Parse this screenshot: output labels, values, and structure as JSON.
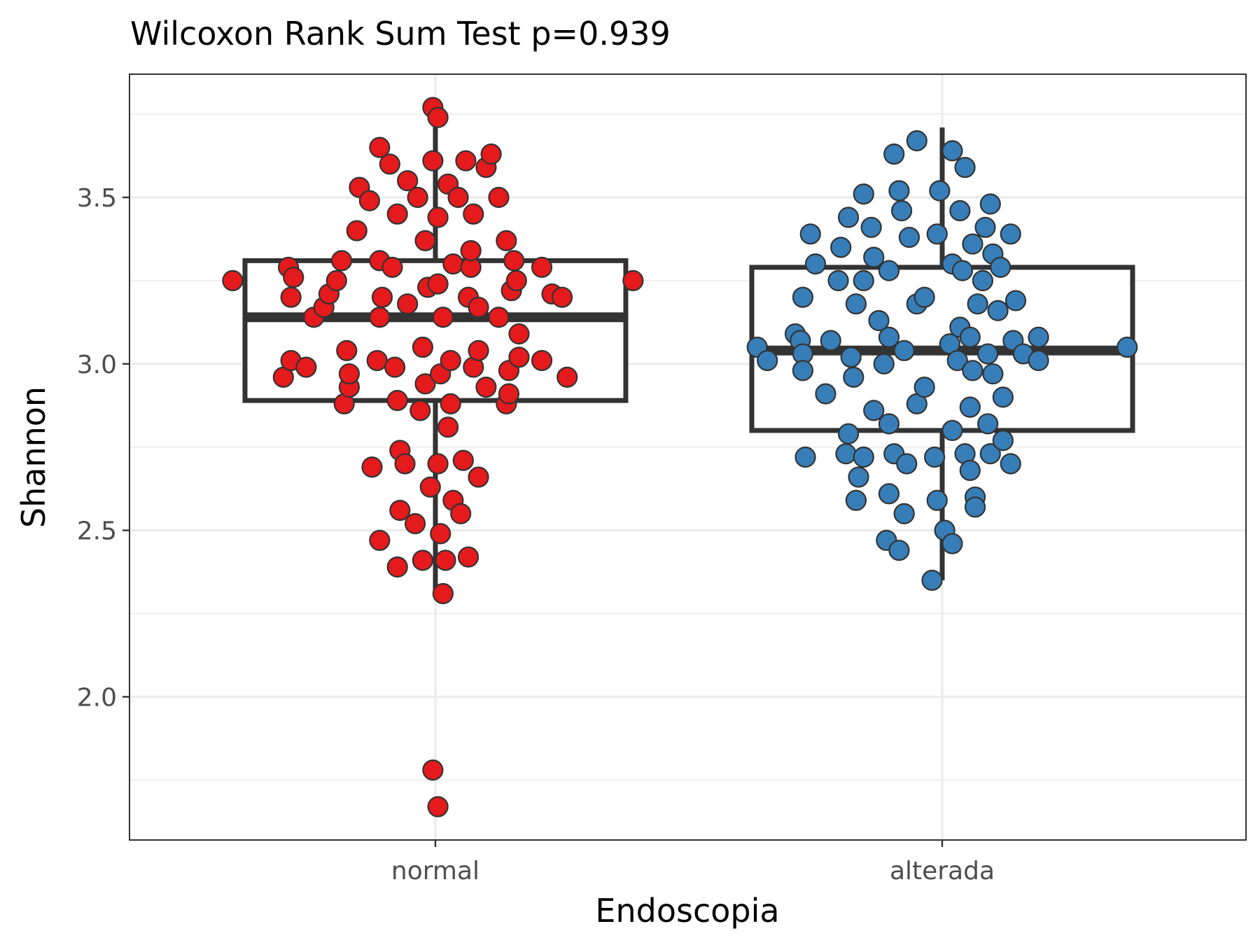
{
  "chart_data": {
    "type": "box",
    "title": "Wilcoxon Rank Sum Test p=0.939",
    "xlabel": "Endoscopia",
    "ylabel": "Shannon",
    "ylim": [
      1.57,
      3.87
    ],
    "yticks": [
      2.0,
      2.5,
      3.0,
      3.5
    ],
    "ytick_labels": [
      "2.0",
      "2.5",
      "3.0",
      "3.5"
    ],
    "grid": true,
    "categories": [
      "normal",
      "alterada"
    ],
    "colors": {
      "normal": "#e41a1c",
      "alterada": "#377eb8"
    },
    "boxes": [
      {
        "category": "normal",
        "whisker_low": 2.32,
        "q1": 2.89,
        "median": 3.14,
        "q3": 3.31,
        "whisker_high": 3.74
      },
      {
        "category": "alterada",
        "whisker_low": 2.35,
        "q1": 2.8,
        "median": 3.04,
        "q3": 3.29,
        "whisker_high": 3.71
      }
    ],
    "series": [
      {
        "category": "normal",
        "points": [
          [
            -0.8,
            3.25
          ],
          [
            0.78,
            3.25
          ],
          [
            -0.6,
            2.96
          ],
          [
            -0.58,
            3.29
          ],
          [
            -0.56,
            3.26
          ],
          [
            -0.57,
            3.2
          ],
          [
            -0.57,
            3.01
          ],
          [
            -0.51,
            2.99
          ],
          [
            -0.48,
            3.14
          ],
          [
            -0.44,
            3.17
          ],
          [
            -0.42,
            3.21
          ],
          [
            -0.39,
            3.25
          ],
          [
            -0.37,
            3.31
          ],
          [
            -0.36,
            2.88
          ],
          [
            -0.34,
            2.93
          ],
          [
            -0.34,
            2.97
          ],
          [
            -0.35,
            3.04
          ],
          [
            -0.31,
            3.4
          ],
          [
            -0.3,
            3.53
          ],
          [
            -0.26,
            3.49
          ],
          [
            -0.25,
            2.69
          ],
          [
            -0.23,
            3.01
          ],
          [
            -0.22,
            3.14
          ],
          [
            -0.22,
            3.31
          ],
          [
            -0.22,
            3.65
          ],
          [
            -0.22,
            2.47
          ],
          [
            -0.21,
            3.2
          ],
          [
            -0.18,
            3.6
          ],
          [
            -0.17,
            3.29
          ],
          [
            -0.16,
            2.99
          ],
          [
            -0.15,
            3.45
          ],
          [
            -0.15,
            2.89
          ],
          [
            -0.14,
            2.74
          ],
          [
            -0.14,
            2.56
          ],
          [
            -0.15,
            2.39
          ],
          [
            -0.12,
            2.7
          ],
          [
            -0.11,
            3.18
          ],
          [
            -0.11,
            3.55
          ],
          [
            -0.08,
            2.52
          ],
          [
            -0.07,
            3.5
          ],
          [
            -0.06,
            2.86
          ],
          [
            -0.05,
            3.05
          ],
          [
            -0.05,
            2.41
          ],
          [
            -0.04,
            2.94
          ],
          [
            -0.04,
            3.37
          ],
          [
            -0.03,
            3.23
          ],
          [
            -0.02,
            2.63
          ],
          [
            -0.01,
            3.77
          ],
          [
            -0.01,
            1.78
          ],
          [
            0.01,
            1.67
          ],
          [
            -0.01,
            3.61
          ],
          [
            0.01,
            3.74
          ],
          [
            0.01,
            2.7
          ],
          [
            0.01,
            3.24
          ],
          [
            0.02,
            2.97
          ],
          [
            0.01,
            3.44
          ],
          [
            0.02,
            2.49
          ],
          [
            0.03,
            2.31
          ],
          [
            0.03,
            3.14
          ],
          [
            0.04,
            2.41
          ],
          [
            0.05,
            2.81
          ],
          [
            0.05,
            3.54
          ],
          [
            0.06,
            2.88
          ],
          [
            0.06,
            3.01
          ],
          [
            0.07,
            2.59
          ],
          [
            0.07,
            3.3
          ],
          [
            0.09,
            3.5
          ],
          [
            0.1,
            2.55
          ],
          [
            0.11,
            2.71
          ],
          [
            0.12,
            3.61
          ],
          [
            0.13,
            3.2
          ],
          [
            0.13,
            2.42
          ],
          [
            0.14,
            3.29
          ],
          [
            0.14,
            3.34
          ],
          [
            0.15,
            2.99
          ],
          [
            0.15,
            3.45
          ],
          [
            0.17,
            3.04
          ],
          [
            0.17,
            2.66
          ],
          [
            0.17,
            3.17
          ],
          [
            0.2,
            3.59
          ],
          [
            0.22,
            3.63
          ],
          [
            0.2,
            2.93
          ],
          [
            0.25,
            3.14
          ],
          [
            0.25,
            3.5
          ],
          [
            0.28,
            3.37
          ],
          [
            0.28,
            2.88
          ],
          [
            0.29,
            2.98
          ],
          [
            0.29,
            2.91
          ],
          [
            0.3,
            3.22
          ],
          [
            0.31,
            3.31
          ],
          [
            0.32,
            3.25
          ],
          [
            0.33,
            3.02
          ],
          [
            0.33,
            3.09
          ],
          [
            0.42,
            3.29
          ],
          [
            0.42,
            3.01
          ],
          [
            0.46,
            3.21
          ],
          [
            0.5,
            3.2
          ],
          [
            0.52,
            2.96
          ]
        ]
      },
      {
        "category": "alterada",
        "points": [
          [
            -0.73,
            3.05
          ],
          [
            0.73,
            3.05
          ],
          [
            -0.69,
            3.01
          ],
          [
            -0.58,
            3.09
          ],
          [
            -0.56,
            3.07
          ],
          [
            -0.55,
            3.03
          ],
          [
            -0.55,
            2.98
          ],
          [
            -0.55,
            3.2
          ],
          [
            -0.54,
            2.72
          ],
          [
            -0.52,
            3.39
          ],
          [
            -0.5,
            3.3
          ],
          [
            -0.46,
            2.91
          ],
          [
            -0.44,
            3.07
          ],
          [
            -0.41,
            3.25
          ],
          [
            -0.4,
            3.35
          ],
          [
            -0.38,
            2.73
          ],
          [
            -0.37,
            2.79
          ],
          [
            -0.37,
            3.44
          ],
          [
            -0.36,
            3.02
          ],
          [
            -0.35,
            2.96
          ],
          [
            -0.34,
            3.18
          ],
          [
            -0.34,
            2.59
          ],
          [
            -0.33,
            2.66
          ],
          [
            -0.31,
            3.25
          ],
          [
            -0.31,
            3.51
          ],
          [
            -0.31,
            2.72
          ],
          [
            -0.28,
            3.41
          ],
          [
            -0.27,
            2.86
          ],
          [
            -0.27,
            3.32
          ],
          [
            -0.25,
            3.13
          ],
          [
            -0.23,
            3.0
          ],
          [
            -0.22,
            2.47
          ],
          [
            -0.21,
            3.28
          ],
          [
            -0.21,
            3.08
          ],
          [
            -0.21,
            2.61
          ],
          [
            -0.21,
            2.82
          ],
          [
            -0.19,
            3.63
          ],
          [
            -0.19,
            2.73
          ],
          [
            -0.17,
            2.44
          ],
          [
            -0.17,
            3.52
          ],
          [
            -0.16,
            3.46
          ],
          [
            -0.15,
            3.04
          ],
          [
            -0.15,
            2.55
          ],
          [
            -0.14,
            2.7
          ],
          [
            -0.13,
            3.38
          ],
          [
            -0.1,
            2.88
          ],
          [
            -0.1,
            3.18
          ],
          [
            -0.1,
            3.67
          ],
          [
            -0.07,
            3.2
          ],
          [
            -0.07,
            2.93
          ],
          [
            -0.04,
            2.35
          ],
          [
            -0.02,
            3.39
          ],
          [
            -0.03,
            2.72
          ],
          [
            -0.02,
            2.59
          ],
          [
            -0.01,
            3.52
          ],
          [
            0.01,
            2.5
          ],
          [
            0.04,
            3.3
          ],
          [
            0.03,
            3.06
          ],
          [
            0.04,
            2.8
          ],
          [
            0.04,
            3.64
          ],
          [
            0.04,
            2.46
          ],
          [
            0.06,
            3.01
          ],
          [
            0.07,
            3.46
          ],
          [
            0.08,
            3.28
          ],
          [
            0.09,
            3.59
          ],
          [
            0.07,
            3.11
          ],
          [
            0.09,
            2.73
          ],
          [
            0.11,
            2.68
          ],
          [
            0.11,
            2.87
          ],
          [
            0.11,
            3.08
          ],
          [
            0.12,
            2.98
          ],
          [
            0.12,
            3.36
          ],
          [
            0.13,
            2.6
          ],
          [
            0.13,
            2.57
          ],
          [
            0.14,
            3.18
          ],
          [
            0.16,
            3.25
          ],
          [
            0.17,
            3.41
          ],
          [
            0.18,
            2.82
          ],
          [
            0.18,
            3.03
          ],
          [
            0.19,
            3.48
          ],
          [
            0.19,
            2.73
          ],
          [
            0.2,
            2.97
          ],
          [
            0.2,
            3.33
          ],
          [
            0.22,
            3.16
          ],
          [
            0.24,
            2.77
          ],
          [
            0.24,
            2.9
          ],
          [
            0.23,
            3.29
          ],
          [
            0.27,
            3.39
          ],
          [
            0.27,
            2.7
          ],
          [
            0.28,
            3.07
          ],
          [
            0.29,
            3.19
          ],
          [
            0.32,
            3.03
          ],
          [
            0.38,
            3.01
          ],
          [
            0.38,
            3.08
          ]
        ]
      }
    ]
  }
}
